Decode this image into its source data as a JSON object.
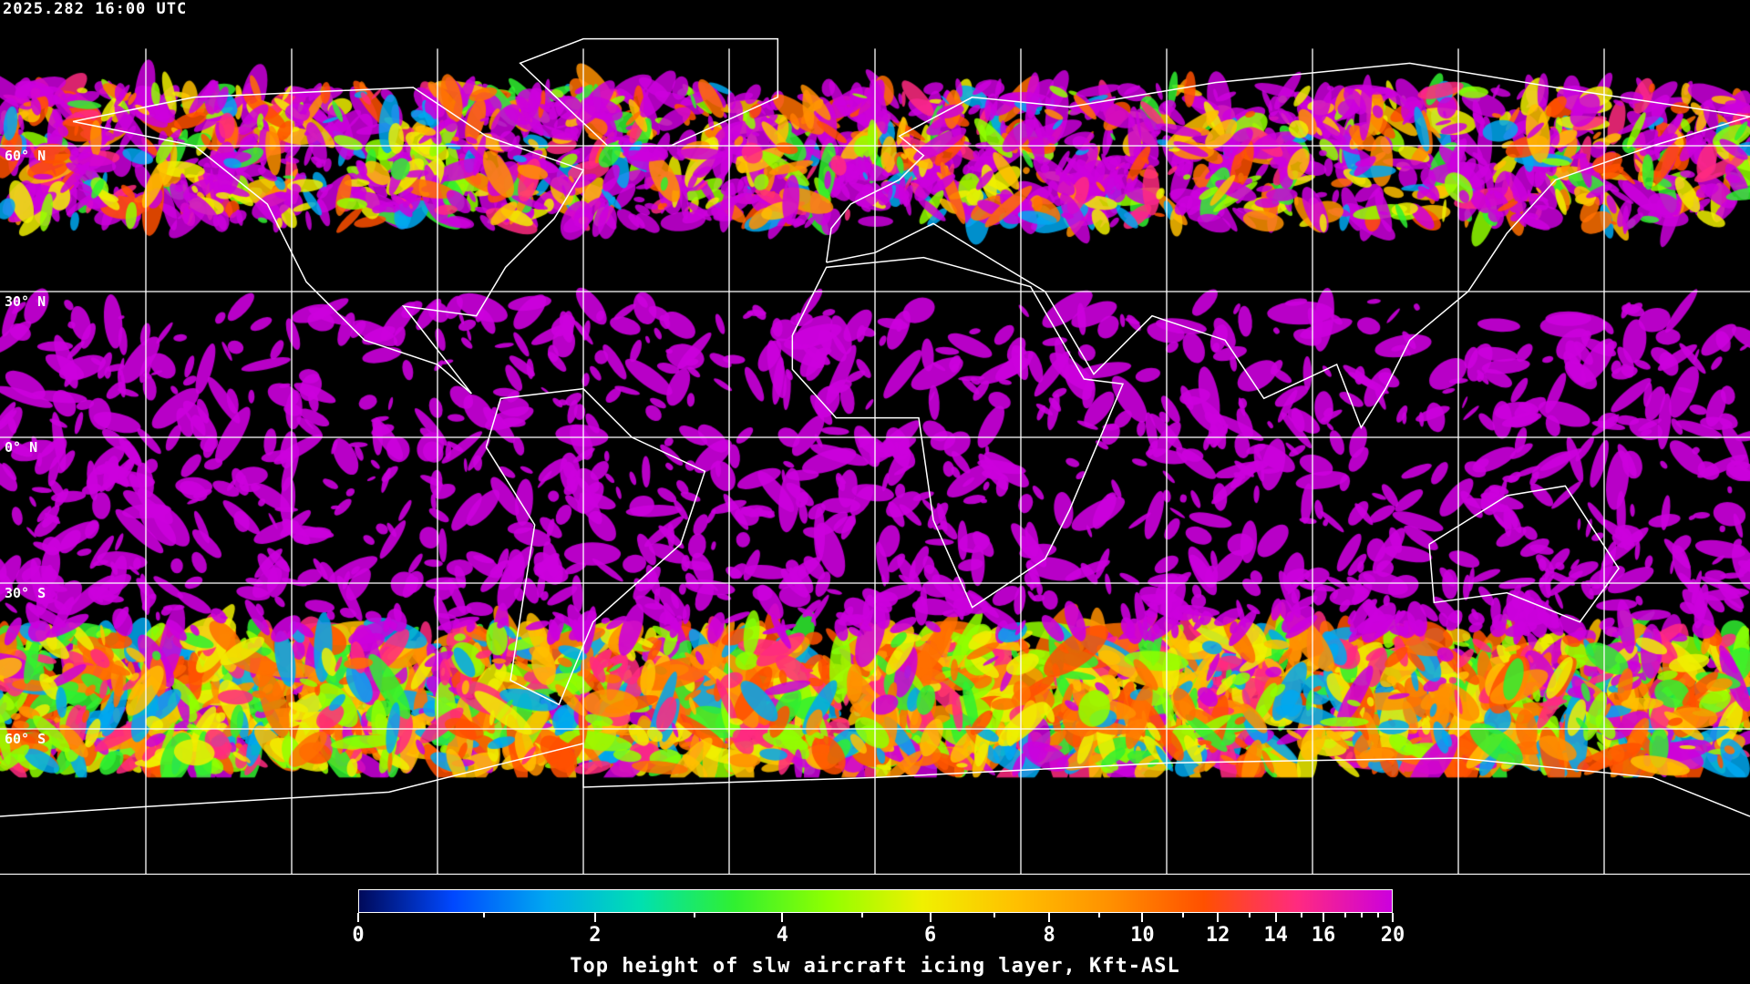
{
  "header": {
    "timestamp": "2025.282 16:00 UTC"
  },
  "map": {
    "projection": "equirectangular",
    "background": "#000000",
    "gridline_color": "#ffffff",
    "coastline_color": "#ffffff",
    "lat_labels": [
      "60° N",
      "30° N",
      "0° N",
      "30° S",
      "60° S"
    ],
    "lat_values": [
      60,
      30,
      0,
      -30,
      -60
    ],
    "lon_gridlines": [
      -150,
      -120,
      -90,
      -60,
      -30,
      0,
      30,
      60,
      90,
      120,
      150
    ]
  },
  "colorbar": {
    "title": "Top height of slw aircraft icing layer, Kft-ASL",
    "tick_labels": [
      "0",
      "2",
      "4",
      "6",
      "8",
      "10",
      "12",
      "14",
      "16",
      "20"
    ],
    "major_ticks": [
      0,
      2,
      4,
      6,
      8,
      10,
      12,
      14,
      16,
      20
    ],
    "minor_ticks": [
      1,
      3,
      5,
      7,
      9,
      11,
      13,
      15,
      17,
      18,
      19
    ],
    "range": [
      0,
      20
    ],
    "colors": [
      "#000a5a",
      "#0048ff",
      "#00a8f0",
      "#00e0b0",
      "#30f030",
      "#90ff00",
      "#f0f000",
      "#ffc000",
      "#ff9000",
      "#ff5000",
      "#ff2a80",
      "#cc00dd"
    ]
  }
}
